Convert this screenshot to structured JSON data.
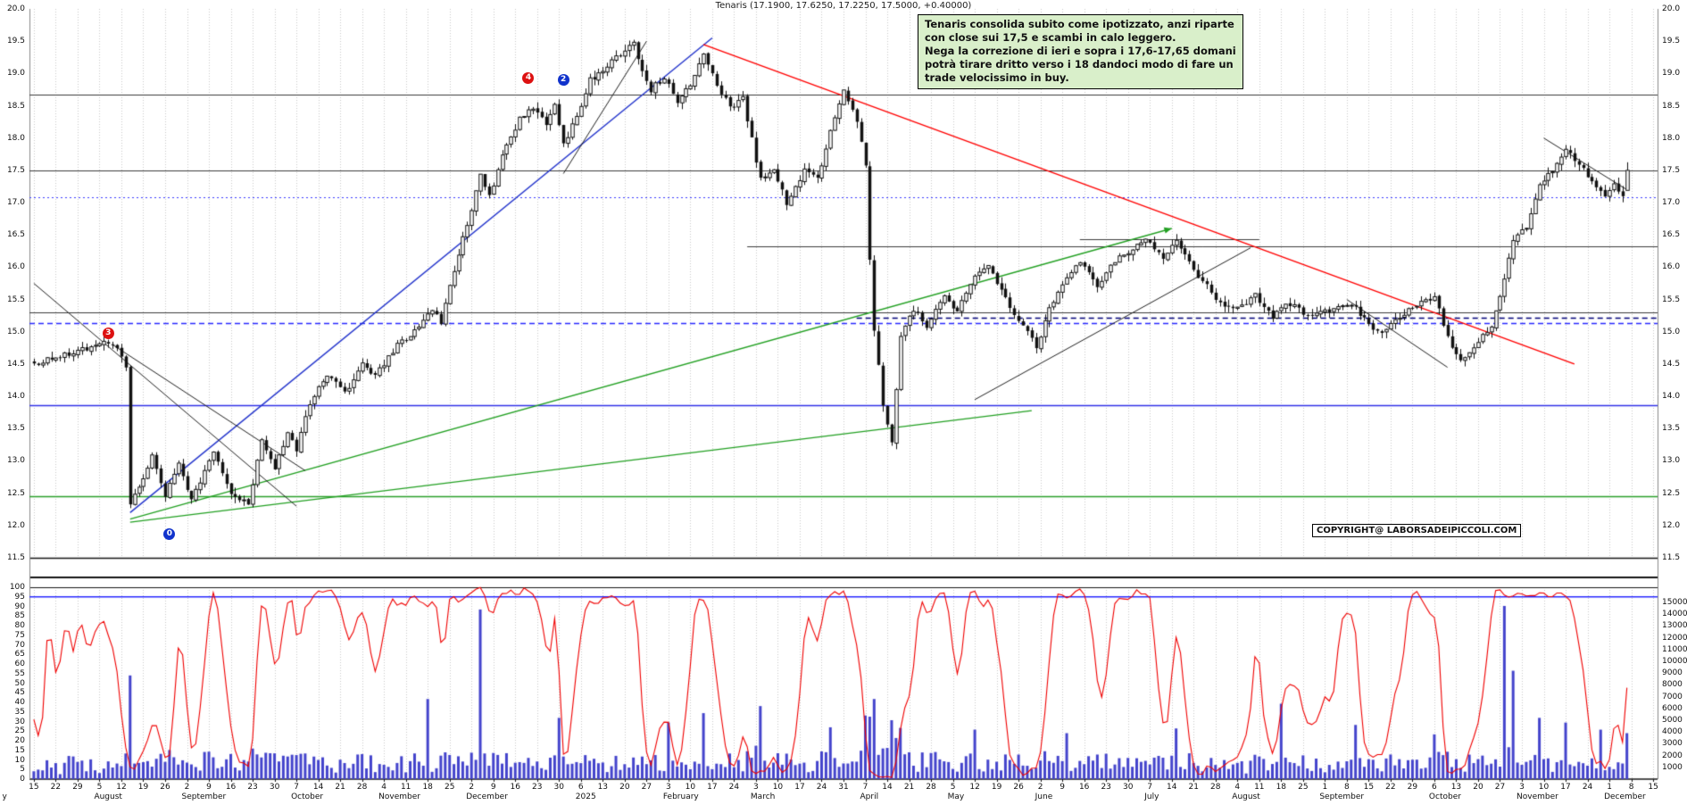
{
  "title": "Tenaris (17.1900, 17.6250, 17.2250, 17.5000, +0.40000)",
  "annotation": {
    "text": "Tenaris consolida subito come ipotizzato, anzi riparte\ncon close sui 17,5 e scambi in calo leggero.\nNega la correzione di ieri e sopra i 17,6-17,65 domani\npotrà tirare dritto verso i 18 dandoci modo di fare un\ntrade velocissimo in buy.",
    "bg_color": "#d9efca",
    "border_color": "#000000"
  },
  "copyright": "COPYRIGHT@ LABORSADEIPICCOLI.COM",
  "chart_data": {
    "type": "candlestick",
    "instrument": "Tenaris",
    "title": "Tenaris (17.1900, 17.6250, 17.2250, 17.5000, +0.40000)",
    "ohlc_last": {
      "day": 364,
      "open": 17.19,
      "high": 17.625,
      "low": 17.225,
      "close": 17.5,
      "prev_close": 17.1,
      "change": "+0.40000"
    },
    "price_axis": {
      "min": 11.5,
      "max": 20.0,
      "tick_labels": [
        "20.0",
        "19.5",
        "19.0",
        "18.5",
        "18.0",
        "17.5",
        "17.0",
        "16.5",
        "16.0",
        "15.5",
        "15.0",
        "14.5",
        "14.0",
        "13.5",
        "13.0",
        "12.5",
        "12.0",
        "11.5"
      ]
    },
    "time_axis": {
      "total_days": 372,
      "week_tick_spacing_days": 5,
      "week_tick_labels": [
        "15",
        "22",
        "29",
        "5",
        "12",
        "19",
        "26",
        "2",
        "9",
        "16",
        "23",
        "30",
        "7",
        "14",
        "21",
        "28",
        "4",
        "11",
        "18",
        "25",
        "2",
        "9",
        "16",
        "23",
        "30",
        "6",
        "13",
        "20",
        "27",
        "3",
        "10",
        "17",
        "24",
        "3",
        "10",
        "17",
        "24",
        "31",
        "7",
        "14",
        "21",
        "28",
        "5",
        "12",
        "19",
        "26",
        "2",
        "9",
        "16",
        "23",
        "30",
        "7",
        "14",
        "21",
        "28",
        "4",
        "11",
        "18",
        "25",
        "1",
        "8",
        "15",
        "22",
        "29",
        "6",
        "13",
        "20",
        "27",
        "3",
        "10",
        "17",
        "24",
        "1",
        "8",
        "15"
      ],
      "months": [
        {
          "label": "y",
          "day": -6
        },
        {
          "label": "August",
          "day": 15
        },
        {
          "label": "September",
          "day": 35
        },
        {
          "label": "October",
          "day": 60
        },
        {
          "label": "November",
          "day": 80
        },
        {
          "label": "December",
          "day": 100
        },
        {
          "label": "2025",
          "day": 125
        },
        {
          "label": "February",
          "day": 145
        },
        {
          "label": "March",
          "day": 165
        },
        {
          "label": "April",
          "day": 190
        },
        {
          "label": "May",
          "day": 210
        },
        {
          "label": "June",
          "day": 230
        },
        {
          "label": "July",
          "day": 255
        },
        {
          "label": "August",
          "day": 275
        },
        {
          "label": "September",
          "day": 295
        },
        {
          "label": "October",
          "day": 320
        },
        {
          "label": "November",
          "day": 340
        },
        {
          "label": "December",
          "day": 360
        }
      ]
    },
    "price_path": [
      [
        0,
        14.5
      ],
      [
        18,
        14.85
      ],
      [
        21,
        14.45
      ],
      [
        22,
        12.3
      ],
      [
        27,
        13.05
      ],
      [
        30,
        12.45
      ],
      [
        33,
        12.95
      ],
      [
        36,
        12.4
      ],
      [
        41,
        13.1
      ],
      [
        45,
        12.5
      ],
      [
        49,
        12.35
      ],
      [
        52,
        13.3
      ],
      [
        55,
        12.9
      ],
      [
        58,
        13.45
      ],
      [
        60,
        13.15
      ],
      [
        63,
        13.9
      ],
      [
        67,
        14.35
      ],
      [
        71,
        14.05
      ],
      [
        75,
        14.5
      ],
      [
        78,
        14.3
      ],
      [
        83,
        14.8
      ],
      [
        87,
        15.0
      ],
      [
        91,
        15.35
      ],
      [
        93,
        15.15
      ],
      [
        97,
        16.2
      ],
      [
        102,
        17.4
      ],
      [
        104,
        17.1
      ],
      [
        108,
        17.9
      ],
      [
        111,
        18.3
      ],
      [
        114,
        18.45
      ],
      [
        117,
        18.2
      ],
      [
        119,
        18.55
      ],
      [
        121,
        17.9
      ],
      [
        124,
        18.35
      ],
      [
        127,
        18.9
      ],
      [
        131,
        19.1
      ],
      [
        134,
        19.3
      ],
      [
        137,
        19.45
      ],
      [
        139,
        19.05
      ],
      [
        141,
        18.75
      ],
      [
        144,
        18.95
      ],
      [
        147,
        18.55
      ],
      [
        150,
        18.85
      ],
      [
        153,
        19.3
      ],
      [
        156,
        18.85
      ],
      [
        159,
        18.45
      ],
      [
        162,
        18.6
      ],
      [
        166,
        17.35
      ],
      [
        169,
        17.55
      ],
      [
        172,
        17.0
      ],
      [
        176,
        17.5
      ],
      [
        179,
        17.35
      ],
      [
        182,
        18.1
      ],
      [
        185,
        18.7
      ],
      [
        188,
        18.25
      ],
      [
        190,
        17.55
      ],
      [
        191,
        16.1
      ],
      [
        192,
        15.05
      ],
      [
        194,
        13.9
      ],
      [
        196,
        13.3
      ],
      [
        198,
        14.9
      ],
      [
        201,
        15.35
      ],
      [
        204,
        15.1
      ],
      [
        208,
        15.55
      ],
      [
        211,
        15.3
      ],
      [
        215,
        15.9
      ],
      [
        218,
        16.0
      ],
      [
        222,
        15.5
      ],
      [
        226,
        15.1
      ],
      [
        229,
        14.75
      ],
      [
        232,
        15.35
      ],
      [
        236,
        15.85
      ],
      [
        239,
        16.1
      ],
      [
        243,
        15.7
      ],
      [
        247,
        16.1
      ],
      [
        251,
        16.25
      ],
      [
        254,
        16.45
      ],
      [
        258,
        16.15
      ],
      [
        261,
        16.4
      ],
      [
        264,
        16.05
      ],
      [
        268,
        15.7
      ],
      [
        271,
        15.45
      ],
      [
        275,
        15.35
      ],
      [
        279,
        15.55
      ],
      [
        283,
        15.2
      ],
      [
        286,
        15.45
      ],
      [
        290,
        15.3
      ],
      [
        293,
        15.25
      ],
      [
        297,
        15.35
      ],
      [
        301,
        15.45
      ],
      [
        305,
        15.1
      ],
      [
        308,
        14.95
      ],
      [
        312,
        15.25
      ],
      [
        316,
        15.4
      ],
      [
        320,
        15.55
      ],
      [
        323,
        14.9
      ],
      [
        326,
        14.55
      ],
      [
        329,
        14.75
      ],
      [
        333,
        15.1
      ],
      [
        336,
        15.8
      ],
      [
        338,
        16.45
      ],
      [
        341,
        16.6
      ],
      [
        344,
        17.25
      ],
      [
        347,
        17.5
      ],
      [
        350,
        17.85
      ],
      [
        353,
        17.6
      ],
      [
        356,
        17.35
      ],
      [
        359,
        17.05
      ],
      [
        361,
        17.3
      ],
      [
        363,
        17.1
      ],
      [
        364,
        17.5
      ]
    ],
    "levels": [
      {
        "price": 18.67,
        "color": "#3c3c3c",
        "style": "solid",
        "width": 1
      },
      {
        "price": 17.5,
        "color": "#3c3c3c",
        "style": "solid",
        "width": 1
      },
      {
        "price": 17.08,
        "color": "#3a3aff",
        "style": "dot",
        "width": 1.2
      },
      {
        "price": 16.33,
        "color": "#3c3c3c",
        "style": "solid",
        "width": 1,
        "from": 163
      },
      {
        "price": 16.43,
        "color": "#3c3c3c",
        "style": "solid",
        "width": 1,
        "from": 239,
        "to": 280
      },
      {
        "price": 15.3,
        "color": "#3c3c3c",
        "style": "solid",
        "width": 1
      },
      {
        "price": 15.13,
        "color": "#2828ff",
        "style": "dash",
        "width": 1.4
      },
      {
        "price": 15.22,
        "color": "#00007a",
        "style": "dash",
        "width": 1.4,
        "from": 188
      },
      {
        "price": 13.87,
        "color": "#3030e8",
        "style": "solid",
        "width": 1.4
      },
      {
        "price": 12.45,
        "color": "#2aa02a",
        "style": "solid",
        "width": 1.4
      }
    ],
    "trendlines": [
      {
        "name": "blue-uptrend-2024",
        "d1": 22,
        "p1": 12.2,
        "d2": 155,
        "p2": 19.55,
        "color": "#2233cc",
        "width": 1.4
      },
      {
        "name": "red-downtrend-2025",
        "d1": 153,
        "p1": 19.45,
        "d2": 352,
        "p2": 14.5,
        "color": "#ff0000",
        "width": 1.4
      },
      {
        "name": "green-support-steep",
        "d1": 22,
        "p1": 12.1,
        "d2": 260,
        "p2": 16.6,
        "color": "#22a022",
        "width": 1.3,
        "arrow": true
      },
      {
        "name": "green-support-shallow",
        "d1": 22,
        "p1": 12.05,
        "d2": 228,
        "p2": 13.78,
        "color": "#22a022",
        "width": 1.3
      },
      {
        "name": "black-down-left-1",
        "d1": 0,
        "p1": 15.75,
        "d2": 60,
        "p2": 12.3,
        "color": "#222222",
        "width": 1
      },
      {
        "name": "black-down-left-2",
        "d1": 18,
        "p1": 14.8,
        "d2": 62,
        "p2": 12.85,
        "color": "#222222",
        "width": 1
      },
      {
        "name": "black-up-dec-jan",
        "d1": 121,
        "p1": 17.45,
        "d2": 140,
        "p2": 19.5,
        "color": "#222222",
        "width": 1
      },
      {
        "name": "black-up-may-jul",
        "d1": 215,
        "p1": 13.95,
        "d2": 278,
        "p2": 16.3,
        "color": "#222222",
        "width": 1
      },
      {
        "name": "black-down-sep-oct",
        "d1": 300,
        "p1": 15.5,
        "d2": 323,
        "p2": 14.45,
        "color": "#222222",
        "width": 1
      },
      {
        "name": "black-down-nov",
        "d1": 345,
        "p1": 18.0,
        "d2": 364,
        "p2": 17.2,
        "color": "#222222",
        "width": 1
      }
    ],
    "wave_labels": [
      {
        "text": "3",
        "day": 17,
        "price": 14.97,
        "color": "#dd1111"
      },
      {
        "text": "0",
        "day": 31,
        "price": 11.87,
        "color": "#1133cc"
      },
      {
        "text": "4",
        "day": 113,
        "price": 18.93,
        "color": "#dd1111"
      },
      {
        "text": "2",
        "day": 121,
        "price": 18.9,
        "color": "#1133cc"
      }
    ],
    "oscillator": {
      "color": "#f00000",
      "period": 10,
      "range": [
        0,
        100
      ],
      "overbought_line": 95,
      "line_color": "#2828ff",
      "tick_labels": [
        "100",
        "95",
        "90",
        "85",
        "80",
        "75",
        "70",
        "65",
        "60",
        "55",
        "50",
        "45",
        "40",
        "35",
        "30",
        "25",
        "20",
        "15",
        "10",
        "5",
        "0"
      ]
    },
    "volume": {
      "color": "#4444cc",
      "axis_max": 15000,
      "tick_labels": [
        "15000",
        "14000",
        "13000",
        "12000",
        "11000",
        "10000",
        "9000",
        "8000",
        "7000",
        "6000",
        "5000",
        "4000",
        "3000",
        "2000",
        "1000"
      ],
      "spikes": {
        "22": 8800,
        "90": 6800,
        "102": 14400,
        "120": 5200,
        "145": 4800,
        "153": 5600,
        "166": 6200,
        "182": 4400,
        "190": 5400,
        "192": 6800,
        "196": 5000,
        "215": 4200,
        "236": 3900,
        "261": 4300,
        "285": 6400,
        "302": 4600,
        "320": 3800,
        "336": 14700,
        "338": 9200,
        "344": 5200,
        "350": 4800,
        "358": 4200,
        "364": 3900
      }
    },
    "candle_colors": {
      "up_fill": "#ffffff",
      "down_fill": "#111111",
      "outline": "#111111"
    },
    "background": "#ffffff",
    "grid_color": "#c9c9c9"
  }
}
